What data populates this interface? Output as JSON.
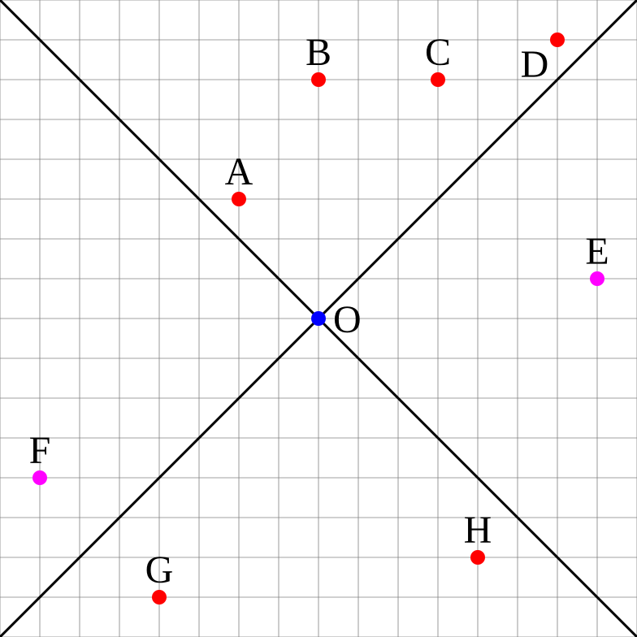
{
  "grid": {
    "min": -8,
    "max": 8,
    "step": 1,
    "color": "#808080"
  },
  "lines": [
    {
      "name": "diagonal-y-equals-x",
      "from": [
        -8,
        -8
      ],
      "to": [
        8,
        8
      ],
      "color": "#000000"
    },
    {
      "name": "diagonal-y-equals-neg-x",
      "from": [
        -8,
        8
      ],
      "to": [
        8,
        -8
      ],
      "color": "#000000"
    }
  ],
  "points": [
    {
      "id": "A",
      "label": "A",
      "x": -2,
      "y": 3,
      "color": "#ff0000",
      "label_pos": "above"
    },
    {
      "id": "B",
      "label": "B",
      "x": 0,
      "y": 6,
      "color": "#ff0000",
      "label_pos": "above"
    },
    {
      "id": "C",
      "label": "C",
      "x": 3,
      "y": 6,
      "color": "#ff0000",
      "label_pos": "above"
    },
    {
      "id": "D",
      "label": "D",
      "x": 6,
      "y": 7,
      "color": "#ff0000",
      "label_pos": "below-left"
    },
    {
      "id": "E",
      "label": "E",
      "x": 7,
      "y": 1,
      "color": "#ff00ff",
      "label_pos": "above"
    },
    {
      "id": "O",
      "label": "O",
      "x": 0,
      "y": 0,
      "color": "#0000ff",
      "label_pos": "right"
    },
    {
      "id": "F",
      "label": "F",
      "x": -7,
      "y": -4,
      "color": "#ff00ff",
      "label_pos": "above"
    },
    {
      "id": "G",
      "label": "G",
      "x": -4,
      "y": -7,
      "color": "#ff0000",
      "label_pos": "above"
    },
    {
      "id": "H",
      "label": "H",
      "x": 4,
      "y": -6,
      "color": "#ff0000",
      "label_pos": "above"
    }
  ]
}
